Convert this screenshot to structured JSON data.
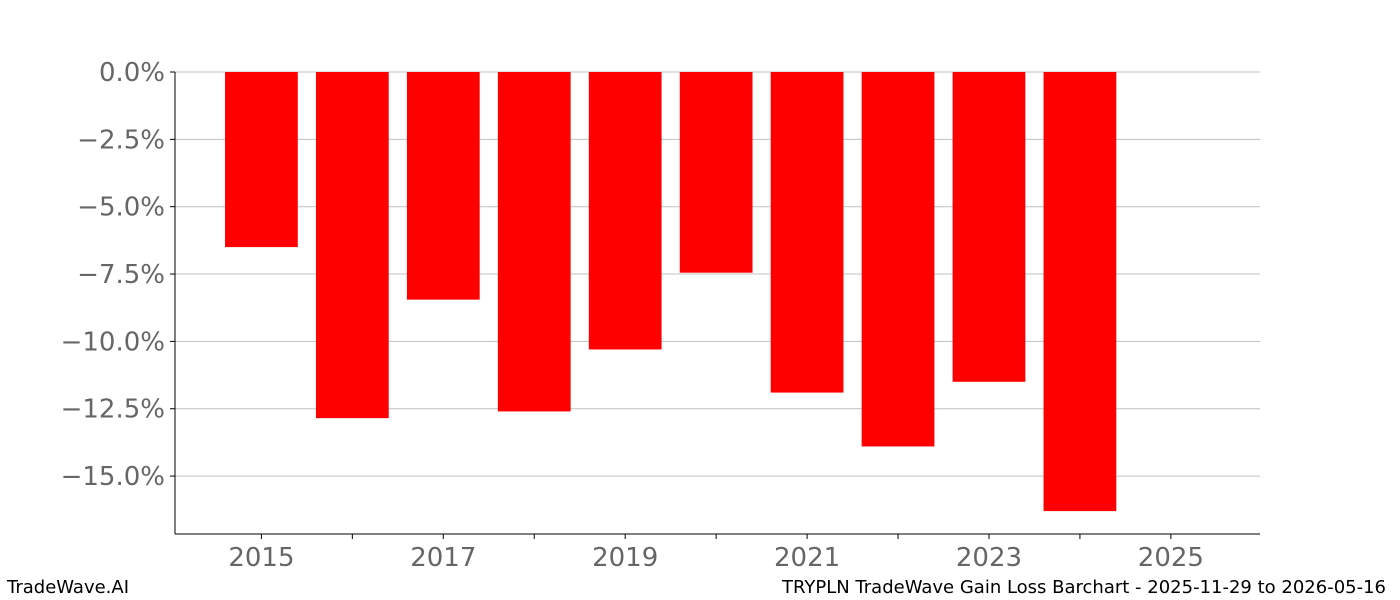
{
  "chart_data": {
    "type": "bar",
    "title": "",
    "xlabel": "",
    "ylabel": "",
    "categories": [
      2015,
      2016,
      2017,
      2018,
      2019,
      2020,
      2021,
      2022,
      2023,
      2024
    ],
    "values": [
      -6.5,
      -12.85,
      -8.45,
      -12.6,
      -10.3,
      -7.45,
      -11.9,
      -13.9,
      -11.5,
      -16.3
    ],
    "bar_color": "#ff0000",
    "bar_width": 0.8,
    "xlim": [
      2014.05,
      2025.98
    ],
    "ylim": [
      -17.15,
      0
    ],
    "xticks": [
      2015,
      2017,
      2019,
      2021,
      2023,
      2025
    ],
    "xtick_labels": [
      "2015",
      "2017",
      "2019",
      "2021",
      "2023",
      "2025"
    ],
    "minor_xticks": [
      2016,
      2018,
      2020,
      2022,
      2024
    ],
    "yticks": [
      0,
      -2.5,
      -5,
      -7.5,
      -10,
      -12.5,
      -15
    ],
    "ytick_labels": [
      "0.0%",
      "−2.5%",
      "−5.0%",
      "−7.5%",
      "−10.0%",
      "−12.5%",
      "−15.0%"
    ],
    "grid": "horizontal"
  },
  "footer": {
    "brand": "TradeWave.AI",
    "caption": "TRYPLN TradeWave Gain Loss Barchart - 2025-11-29 to 2026-05-16"
  }
}
